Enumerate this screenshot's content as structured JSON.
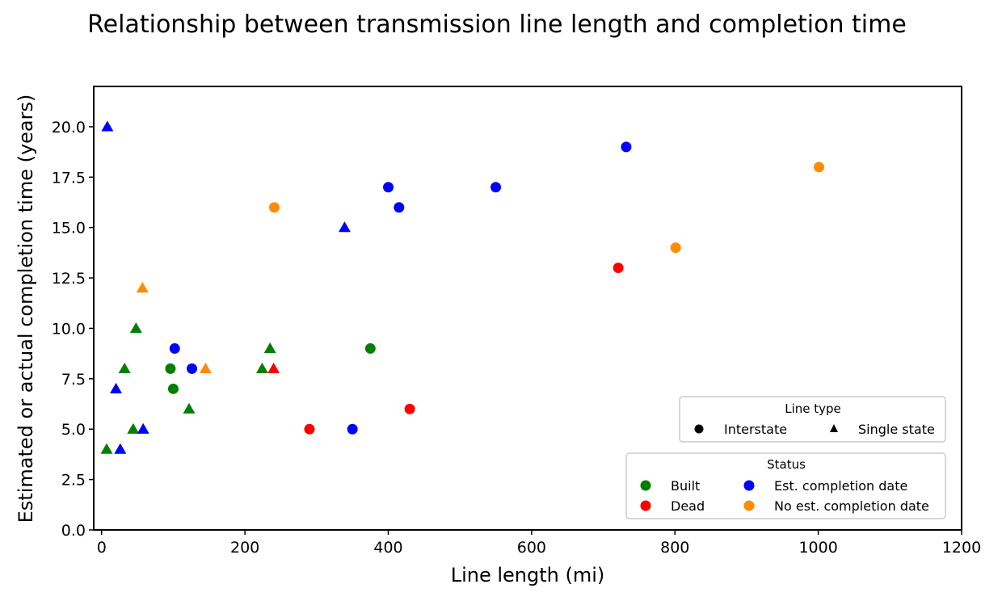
{
  "chart_data": {
    "type": "scatter",
    "title": "Relationship between transmission line length and completion time",
    "xlabel": "Line length (mi)",
    "ylabel": "Estimated or actual completion time (years)",
    "xlim": [
      -11,
      1200
    ],
    "ylim": [
      0,
      22
    ],
    "xticks": [
      0,
      200,
      400,
      600,
      800,
      1000,
      1200
    ],
    "xtick_labels": [
      "0",
      "200",
      "400",
      "600",
      "800",
      "1000",
      "1200"
    ],
    "yticks": [
      0,
      2.5,
      5,
      7.5,
      10,
      12.5,
      15,
      17.5,
      20
    ],
    "ytick_labels": [
      "0.0",
      "2.5",
      "5.0",
      "7.5",
      "10.0",
      "12.5",
      "15.0",
      "17.5",
      "20.0"
    ],
    "grid": false,
    "status_colors": {
      "Built": "#008000",
      "Dead": "#ff0000",
      "Est. completion date": "#0000ff",
      "No est. completion date": "#ff8c00"
    },
    "points": [
      {
        "x": 8,
        "y": 20,
        "type": "Single state",
        "status": "Est. completion date"
      },
      {
        "x": 7,
        "y": 4,
        "type": "Single state",
        "status": "Built"
      },
      {
        "x": 26,
        "y": 4,
        "type": "Single state",
        "status": "Est. completion date"
      },
      {
        "x": 44,
        "y": 5,
        "type": "Single state",
        "status": "Built"
      },
      {
        "x": 58,
        "y": 5,
        "type": "Single state",
        "status": "Est. completion date"
      },
      {
        "x": 20,
        "y": 7,
        "type": "Single state",
        "status": "Est. completion date"
      },
      {
        "x": 32,
        "y": 8,
        "type": "Single state",
        "status": "Built"
      },
      {
        "x": 48,
        "y": 10,
        "type": "Single state",
        "status": "Built"
      },
      {
        "x": 57,
        "y": 12,
        "type": "Single state",
        "status": "No est. completion date"
      },
      {
        "x": 102,
        "y": 9,
        "type": "Interstate",
        "status": "Est. completion date"
      },
      {
        "x": 96,
        "y": 8,
        "type": "Interstate",
        "status": "Built"
      },
      {
        "x": 100,
        "y": 7,
        "type": "Interstate",
        "status": "Built"
      },
      {
        "x": 126,
        "y": 8,
        "type": "Interstate",
        "status": "Est. completion date"
      },
      {
        "x": 145,
        "y": 8,
        "type": "Single state",
        "status": "No est. completion date"
      },
      {
        "x": 122,
        "y": 6,
        "type": "Single state",
        "status": "Built"
      },
      {
        "x": 224,
        "y": 8,
        "type": "Single state",
        "status": "Built"
      },
      {
        "x": 240,
        "y": 8,
        "type": "Single state",
        "status": "Dead"
      },
      {
        "x": 235,
        "y": 9,
        "type": "Single state",
        "status": "Built"
      },
      {
        "x": 241,
        "y": 16,
        "type": "Interstate",
        "status": "No est. completion date"
      },
      {
        "x": 290,
        "y": 5,
        "type": "Interstate",
        "status": "Dead"
      },
      {
        "x": 339,
        "y": 15,
        "type": "Single state",
        "status": "Est. completion date"
      },
      {
        "x": 350,
        "y": 5,
        "type": "Interstate",
        "status": "Est. completion date"
      },
      {
        "x": 375,
        "y": 9,
        "type": "Interstate",
        "status": "Built"
      },
      {
        "x": 400,
        "y": 17,
        "type": "Interstate",
        "status": "Est. completion date"
      },
      {
        "x": 415,
        "y": 16,
        "type": "Interstate",
        "status": "Est. completion date"
      },
      {
        "x": 430,
        "y": 6,
        "type": "Interstate",
        "status": "Dead"
      },
      {
        "x": 550,
        "y": 17,
        "type": "Interstate",
        "status": "Est. completion date"
      },
      {
        "x": 721,
        "y": 13,
        "type": "Interstate",
        "status": "Dead"
      },
      {
        "x": 732,
        "y": 19,
        "type": "Interstate",
        "status": "Est. completion date"
      },
      {
        "x": 801,
        "y": 14,
        "type": "Interstate",
        "status": "No est. completion date"
      },
      {
        "x": 1001,
        "y": 18,
        "type": "Interstate",
        "status": "No est. completion date"
      }
    ],
    "legend": {
      "placement": "bottom-right",
      "line_type": {
        "title": "Line type",
        "entries": [
          {
            "label": "Interstate",
            "marker": "circle"
          },
          {
            "label": "Single state",
            "marker": "triangle"
          }
        ]
      },
      "status": {
        "title": "Status",
        "entries": [
          {
            "label": "Built",
            "color": "#008000"
          },
          {
            "label": "Est. completion date",
            "color": "#0000ff"
          },
          {
            "label": "Dead",
            "color": "#ff0000"
          },
          {
            "label": "No est. completion date",
            "color": "#ff8c00"
          }
        ]
      }
    }
  }
}
